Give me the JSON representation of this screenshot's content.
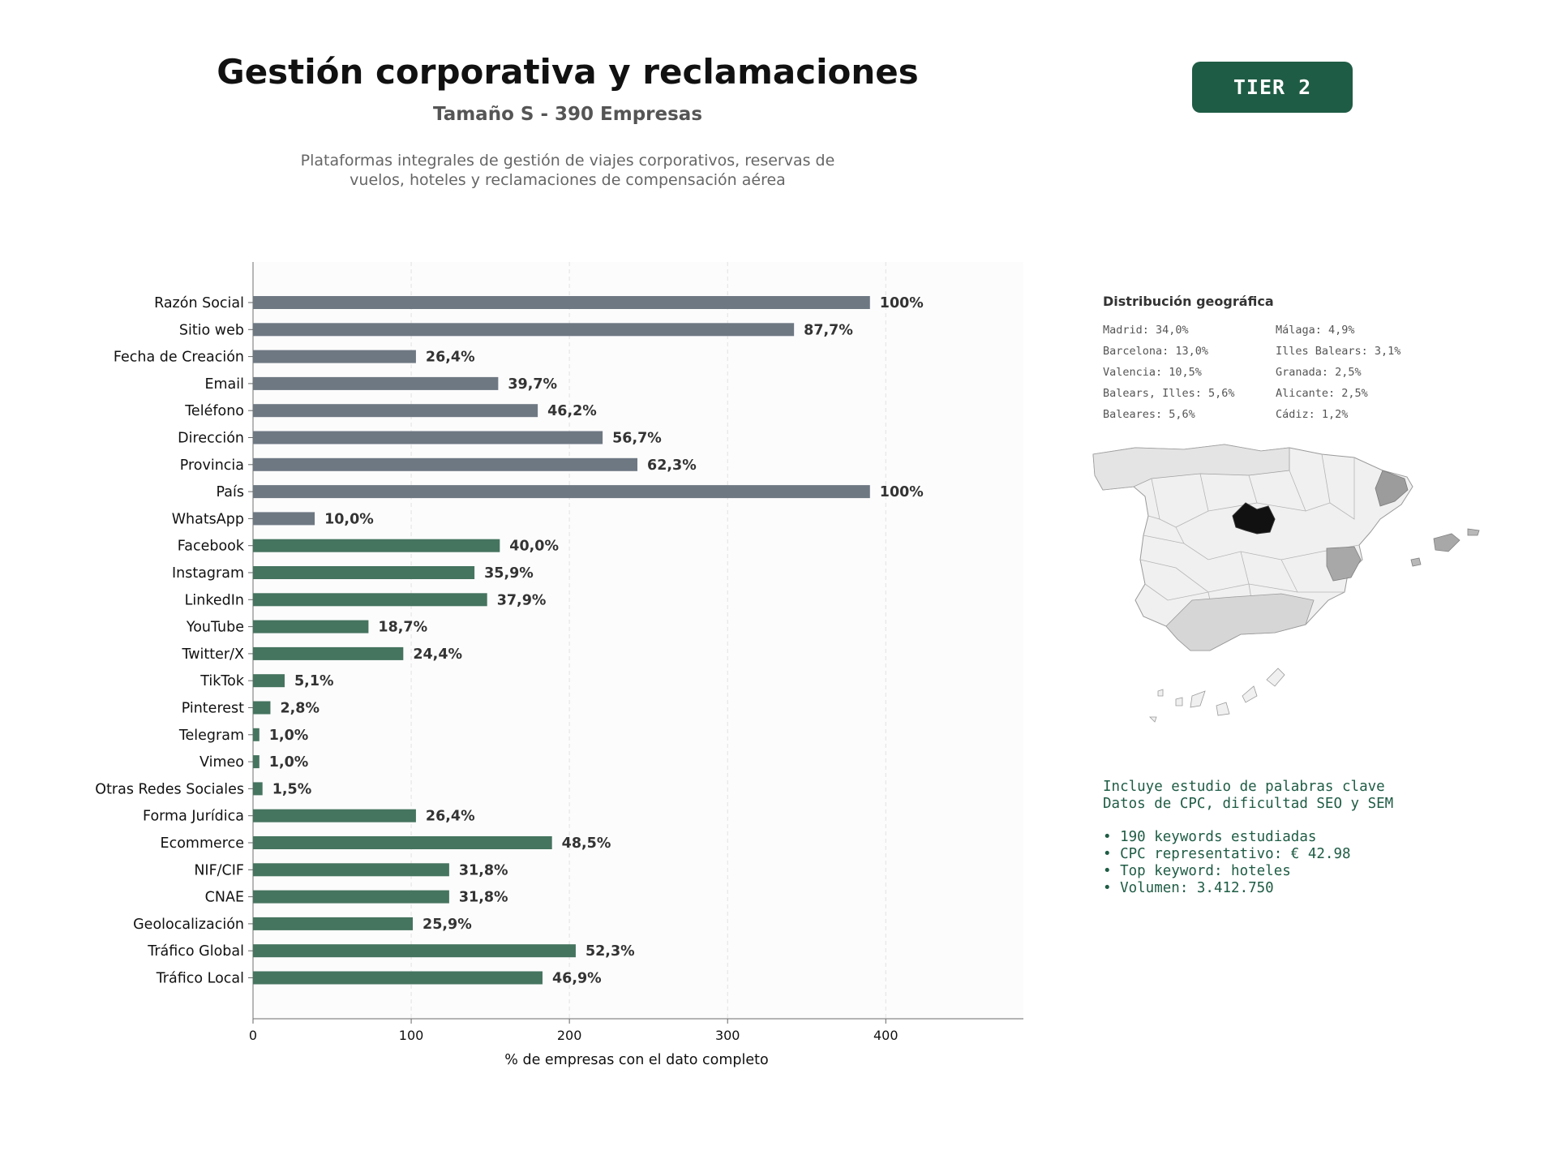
{
  "header": {
    "title": "Gestión corporativa y reclamaciones",
    "subtitle": "Tamaño S - 390 Empresas",
    "description_line1": "Plataformas integrales de gestión de viajes corporativos, reservas de",
    "description_line2": "vuelos, hoteles y reclamaciones de compensación aérea",
    "tier": "TIER 2"
  },
  "colors": {
    "gray_bar": "#6e7883",
    "green_bar": "#45745f",
    "badge": "#1f5c45",
    "keywords_text": "#1f5c45"
  },
  "chart_data": {
    "type": "bar",
    "orientation": "horizontal",
    "xlabel": "% de empresas con el dato completo",
    "xlim": [
      0,
      487
    ],
    "xticks": [
      0,
      100,
      200,
      300,
      400
    ],
    "grid": "vertical dashed",
    "categories": [
      "Razón Social",
      "Sitio web",
      "Fecha de Creación",
      "Email",
      "Teléfono",
      "Dirección",
      "Provincia",
      "País",
      "WhatsApp",
      "Facebook",
      "Instagram",
      "LinkedIn",
      "YouTube",
      "Twitter/X",
      "TikTok",
      "Pinterest",
      "Telegram",
      "Vimeo",
      "Otras Redes Sociales",
      "Forma Jurídica",
      "Ecommerce",
      "NIF/CIF",
      "CNAE",
      "Geolocalización",
      "Tráfico Global",
      "Tráfico Local"
    ],
    "values": [
      390,
      342,
      103,
      155,
      180,
      221,
      243,
      390,
      39,
      156,
      140,
      148,
      73,
      95,
      20,
      11,
      4,
      4,
      6,
      103,
      189,
      124,
      124,
      101,
      204,
      183
    ],
    "labels": [
      "100%",
      "87,7%",
      "26,4%",
      "39,7%",
      "46,2%",
      "56,7%",
      "62,3%",
      "100%",
      "10,0%",
      "40,0%",
      "35,9%",
      "37,9%",
      "18,7%",
      "24,4%",
      "5,1%",
      "2,8%",
      "1,0%",
      "1,0%",
      "1,5%",
      "26,4%",
      "48,5%",
      "31,8%",
      "31,8%",
      "25,9%",
      "52,3%",
      "46,9%"
    ],
    "groups": [
      "gray",
      "gray",
      "gray",
      "gray",
      "gray",
      "gray",
      "gray",
      "gray",
      "gray",
      "green",
      "green",
      "green",
      "green",
      "green",
      "green",
      "green",
      "green",
      "green",
      "green",
      "green",
      "green",
      "green",
      "green",
      "green",
      "green",
      "green"
    ]
  },
  "geo": {
    "title": "Distribución geográfica",
    "items": [
      "Madrid: 34,0%",
      "Málaga: 4,9%",
      "Barcelona: 13,0%",
      "Illes Balears: 3,1%",
      "Valencia: 10,5%",
      "Granada: 2,5%",
      "Balears, Illes: 5,6%",
      "Alicante: 2,5%",
      "Baleares: 5,6%",
      "Cádiz: 1,2%"
    ]
  },
  "keywords": {
    "line1": "Incluye estudio de palabras clave",
    "line2": "Datos de CPC, dificultad SEO y SEM",
    "bullets": [
      "• 190 keywords estudiadas",
      "• CPC representativo: € 42.98",
      "• Top keyword: hoteles",
      "• Volumen: 3.412.750"
    ]
  }
}
